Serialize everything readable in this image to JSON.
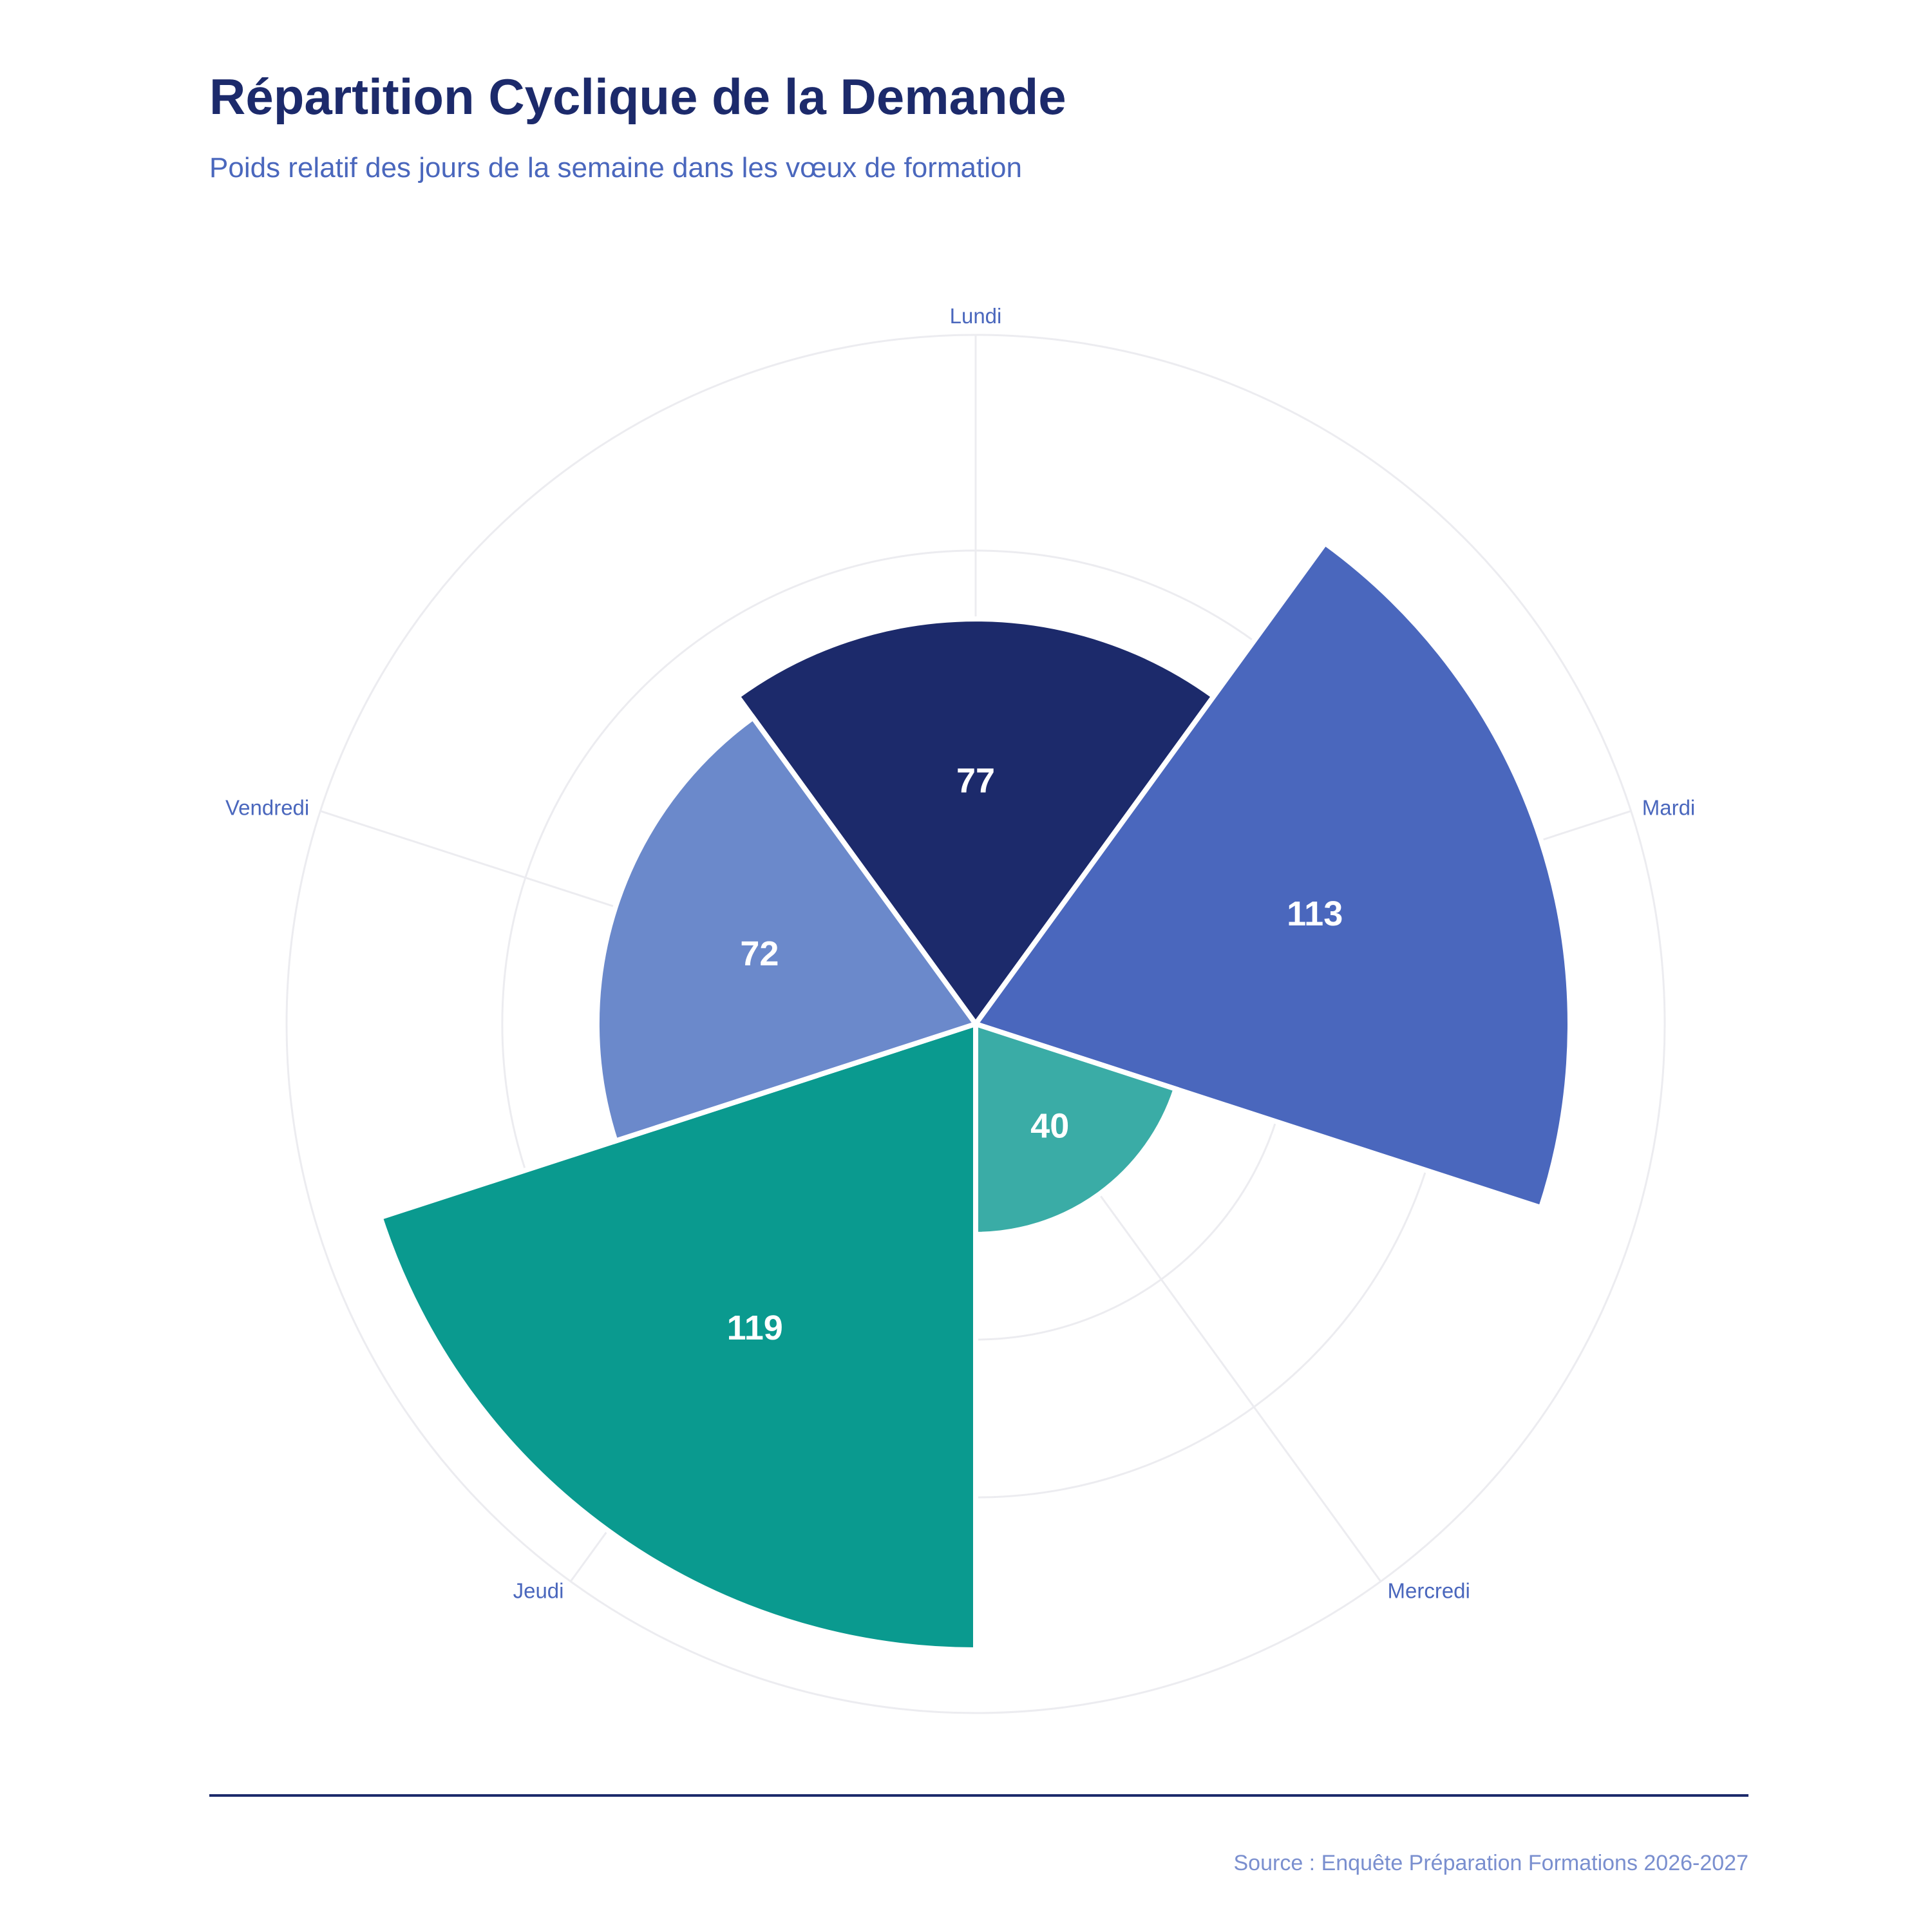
{
  "header": {
    "title": "Répartition Cyclique de la Demande",
    "subtitle": "Poids relatif des jours de la semaine dans les vœux de formation"
  },
  "footer": {
    "source": "Source : Enquête Préparation Formations 2026-2027"
  },
  "chart_data": {
    "type": "bar",
    "subtype": "polar-bar",
    "title": "Répartition Cyclique de la Demande",
    "subtitle": "Poids relatif des jours de la semaine dans les vœux de formation",
    "categories": [
      "Lundi",
      "Mardi",
      "Mercredi",
      "Jeudi",
      "Vendredi"
    ],
    "values": [
      77,
      113,
      40,
      119,
      72
    ],
    "colors": [
      "#1c2a6b",
      "#4a67bd",
      "#3aaca6",
      "#0a9a8f",
      "#6b89cb"
    ],
    "radial_range": [
      0,
      131
    ],
    "radial_grid": [
      30,
      60,
      90,
      131
    ],
    "grid": true,
    "legend": "none",
    "direction": "clockwise",
    "start_category_position": "top"
  }
}
